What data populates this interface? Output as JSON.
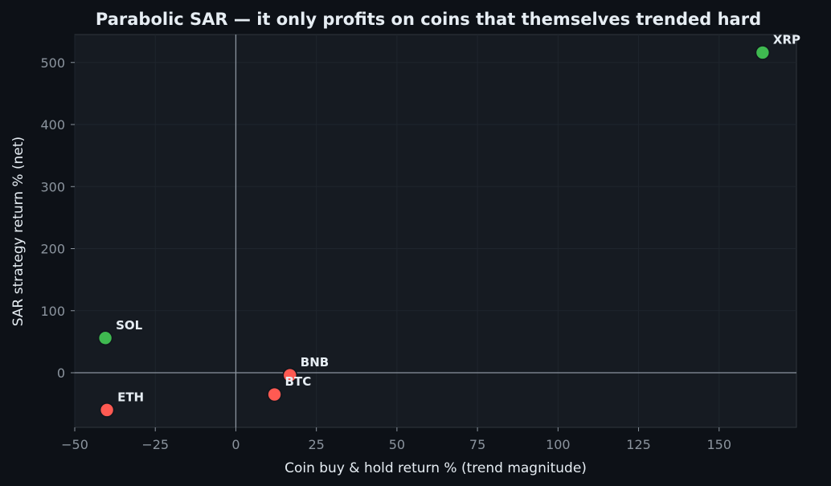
{
  "chart_data": {
    "type": "scatter",
    "title": "Parabolic SAR — it only profits on coins that themselves trended hard",
    "xlabel": "Coin buy & hold return % (trend magnitude)",
    "ylabel": "SAR strategy return % (net)",
    "xlim": [
      -50,
      174
    ],
    "ylim": [
      -88,
      545
    ],
    "xticks": [
      -50,
      -25,
      0,
      25,
      50,
      75,
      100,
      125,
      150
    ],
    "yticks": [
      0,
      100,
      200,
      300,
      400,
      500
    ],
    "xtick_labels": [
      "−50",
      "−25",
      "0",
      "25",
      "50",
      "75",
      "100",
      "125",
      "150"
    ],
    "ytick_labels": [
      "0",
      "100",
      "200",
      "300",
      "400",
      "500"
    ],
    "grid": true,
    "legend": "none",
    "reference_lines": {
      "x": 0,
      "y": 0
    },
    "colors": {
      "positive": "#3fb950",
      "negative": "#ff5a52",
      "background": "#0d1117",
      "plot_background": "#161b22",
      "reference_line": "#8b949e"
    },
    "points": [
      {
        "label": "XRP",
        "x": 163.5,
        "y": 516,
        "color": "#3fb950"
      },
      {
        "label": "SOL",
        "x": -40.5,
        "y": 56,
        "color": "#3fb950"
      },
      {
        "label": "BNB",
        "x": 16.8,
        "y": -4,
        "color": "#ff5a52"
      },
      {
        "label": "BTC",
        "x": 12,
        "y": -35,
        "color": "#ff5a52"
      },
      {
        "label": "ETH",
        "x": -40,
        "y": -60,
        "color": "#ff5a52"
      }
    ]
  }
}
